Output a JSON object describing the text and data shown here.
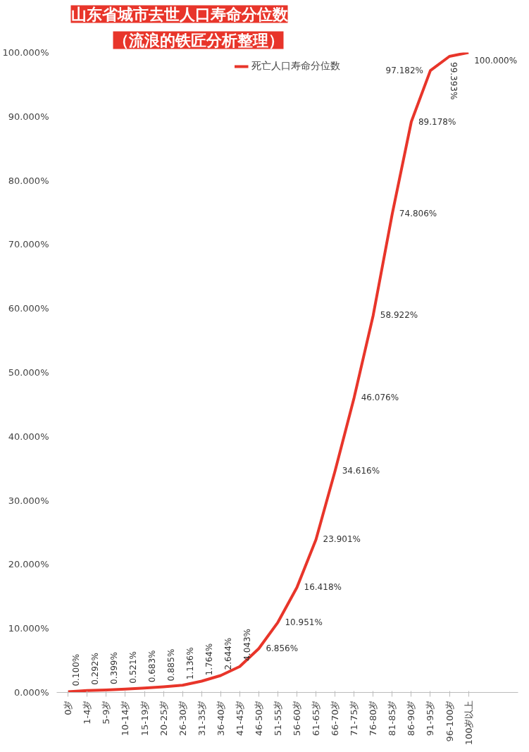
{
  "chart_data": {
    "type": "line",
    "title": "山东省城市去世人口寿命分位数",
    "subtitle": "（流浪的铁匠分析整理）",
    "categories": [
      "0岁",
      "1-4岁",
      "5-9岁",
      "10-14岁",
      "15-19岁",
      "20-25岁",
      "26-30岁",
      "31-35岁",
      "36-40岁",
      "41-45岁",
      "46-50岁",
      "51-55岁",
      "56-60岁",
      "61-65岁",
      "66-70岁",
      "71-75岁",
      "76-80岁",
      "81-85岁",
      "86-90岁",
      "91-95岁",
      "96-100岁",
      "100岁以上"
    ],
    "series": [
      {
        "name": "死亡人口寿命分位数",
        "color": "#e8352a",
        "values": [
          0.1,
          0.292,
          0.399,
          0.521,
          0.683,
          0.885,
          1.136,
          1.764,
          2.644,
          4.043,
          6.856,
          10.951,
          16.418,
          23.901,
          34.616,
          46.076,
          58.922,
          74.806,
          89.178,
          97.182,
          99.393,
          100.0
        ],
        "value_labels": [
          "0.100%",
          "0.292%",
          "0.399%",
          "0.521%",
          "0.683%",
          "0.885%",
          "1.136%",
          "1.764%",
          "2.644%",
          "4.043%",
          "6.856%",
          "10.951%",
          "16.418%",
          "23.901%",
          "34.616%",
          "46.076%",
          "58.922%",
          "74.806%",
          "89.178%",
          "97.182%",
          "99.393%",
          "100.000%"
        ]
      }
    ],
    "ylim": [
      0,
      100
    ],
    "yticks": [
      {
        "value": 0,
        "label": "0.000%"
      },
      {
        "value": 10,
        "label": "10.000%"
      },
      {
        "value": 20,
        "label": "20.000%"
      },
      {
        "value": 30,
        "label": "30.000%"
      },
      {
        "value": 40,
        "label": "40.000%"
      },
      {
        "value": 50,
        "label": "50.000%"
      },
      {
        "value": 60,
        "label": "60.000%"
      },
      {
        "value": 70,
        "label": "70.000%"
      },
      {
        "value": 80,
        "label": "80.000%"
      },
      {
        "value": 90,
        "label": "90.000%"
      },
      {
        "value": 100,
        "label": "100.000%"
      }
    ],
    "grid": false,
    "legend": "top",
    "marker": "none",
    "line_style": "solid"
  }
}
